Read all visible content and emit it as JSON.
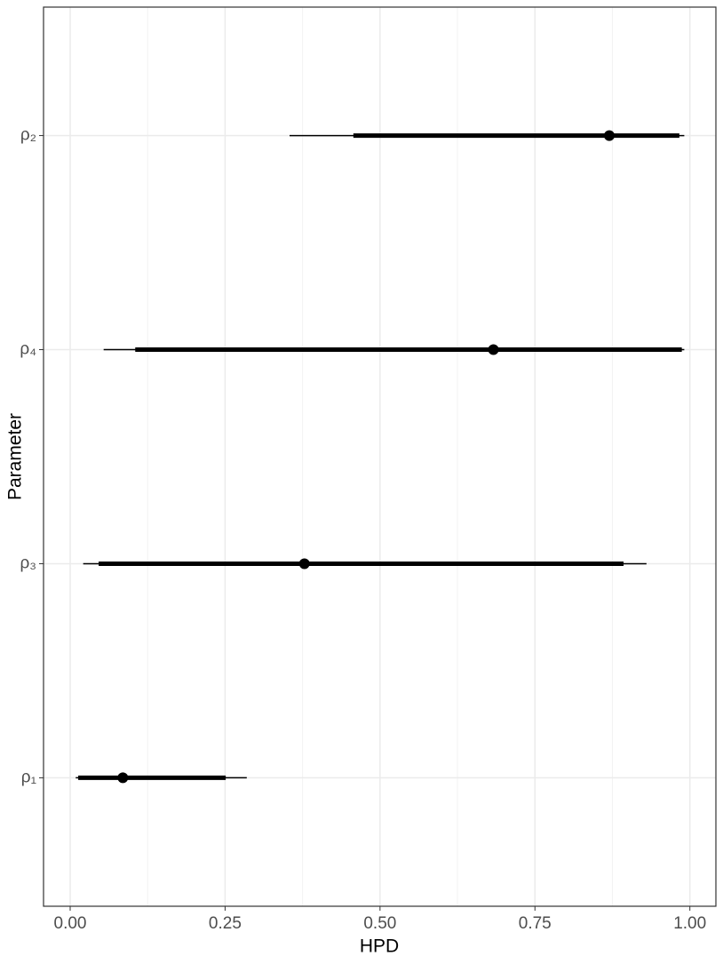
{
  "chart_data": {
    "type": "interval",
    "x_label": "HPD",
    "y_label": "Parameter",
    "categories": [
      "ρ₂",
      "ρ₄",
      "ρ₃",
      "ρ₁"
    ],
    "values": [
      0.87,
      0.683,
      0.378,
      0.085
    ],
    "inner_low": [
      0.457,
      0.105,
      0.046,
      0.013
    ],
    "inner_high": [
      0.983,
      0.987,
      0.893,
      0.251
    ],
    "outer_low": [
      0.354,
      0.054,
      0.021,
      0.009
    ],
    "outer_high": [
      0.991,
      0.991,
      0.93,
      0.285
    ],
    "color": "#000000",
    "xlim": [
      -0.043,
      1.042
    ],
    "xticks": [
      {
        "value": 0,
        "label": "0.00"
      },
      {
        "value": 0.25,
        "label": "0.25"
      },
      {
        "value": 0.5,
        "label": "0.50"
      },
      {
        "value": 0.75,
        "label": "0.75"
      },
      {
        "value": 1,
        "label": "1.00"
      }
    ],
    "xminorticks": [
      0.125,
      0.375,
      0.625,
      0.875
    ],
    "grid": true
  }
}
